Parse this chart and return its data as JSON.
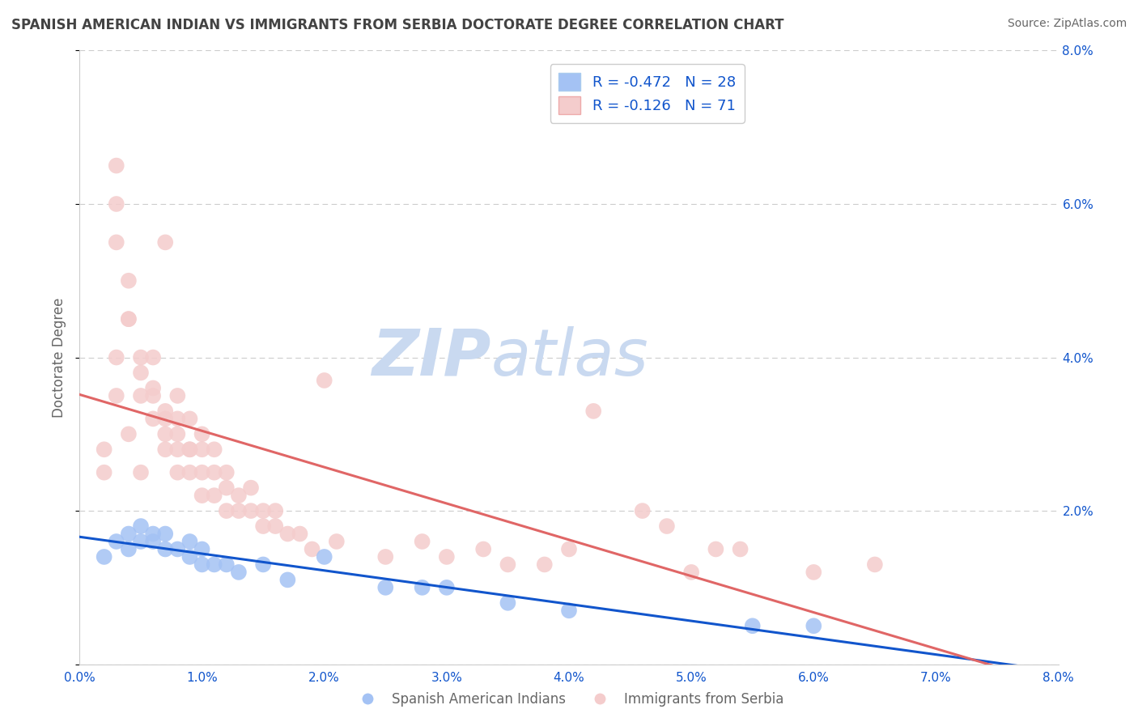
{
  "title": "SPANISH AMERICAN INDIAN VS IMMIGRANTS FROM SERBIA DOCTORATE DEGREE CORRELATION CHART",
  "source": "Source: ZipAtlas.com",
  "ylabel": "Doctorate Degree",
  "xlim": [
    0.0,
    0.08
  ],
  "ylim": [
    0.0,
    0.08
  ],
  "xticks": [
    0.0,
    0.01,
    0.02,
    0.03,
    0.04,
    0.05,
    0.06,
    0.07,
    0.08
  ],
  "xtick_labels": [
    "0.0%",
    "1.0%",
    "2.0%",
    "3.0%",
    "4.0%",
    "5.0%",
    "6.0%",
    "7.0%",
    "8.0%"
  ],
  "yticks": [
    0.0,
    0.02,
    0.04,
    0.06,
    0.08
  ],
  "ytick_labels": [
    "",
    "2.0%",
    "4.0%",
    "6.0%",
    "8.0%"
  ],
  "blue_color": "#a4c2f4",
  "pink_color": "#f4cccc",
  "blue_line_color": "#1155cc",
  "pink_line_color": "#e06666",
  "legend_blue_label": "R = -0.472   N = 28",
  "legend_pink_label": "R = -0.126   N = 71",
  "blue_scatter_x": [
    0.002,
    0.003,
    0.004,
    0.004,
    0.005,
    0.005,
    0.006,
    0.006,
    0.007,
    0.007,
    0.008,
    0.009,
    0.009,
    0.01,
    0.01,
    0.011,
    0.012,
    0.013,
    0.015,
    0.017,
    0.02,
    0.025,
    0.028,
    0.03,
    0.035,
    0.04,
    0.055,
    0.06
  ],
  "blue_scatter_y": [
    0.014,
    0.016,
    0.015,
    0.017,
    0.016,
    0.018,
    0.016,
    0.017,
    0.015,
    0.017,
    0.015,
    0.016,
    0.014,
    0.015,
    0.013,
    0.013,
    0.013,
    0.012,
    0.013,
    0.011,
    0.014,
    0.01,
    0.01,
    0.01,
    0.008,
    0.007,
    0.005,
    0.005
  ],
  "pink_scatter_x": [
    0.002,
    0.002,
    0.003,
    0.003,
    0.003,
    0.004,
    0.004,
    0.004,
    0.005,
    0.005,
    0.005,
    0.006,
    0.006,
    0.006,
    0.007,
    0.007,
    0.007,
    0.007,
    0.008,
    0.008,
    0.008,
    0.008,
    0.009,
    0.009,
    0.009,
    0.01,
    0.01,
    0.01,
    0.01,
    0.011,
    0.011,
    0.011,
    0.012,
    0.012,
    0.012,
    0.013,
    0.013,
    0.014,
    0.014,
    0.015,
    0.015,
    0.016,
    0.016,
    0.017,
    0.018,
    0.019,
    0.02,
    0.021,
    0.025,
    0.028,
    0.03,
    0.033,
    0.035,
    0.038,
    0.04,
    0.042,
    0.046,
    0.048,
    0.05,
    0.052,
    0.054,
    0.06,
    0.065,
    0.003,
    0.003,
    0.004,
    0.005,
    0.006,
    0.007,
    0.008,
    0.009
  ],
  "pink_scatter_y": [
    0.028,
    0.025,
    0.04,
    0.035,
    0.055,
    0.03,
    0.045,
    0.05,
    0.035,
    0.04,
    0.025,
    0.032,
    0.035,
    0.04,
    0.028,
    0.03,
    0.032,
    0.055,
    0.025,
    0.028,
    0.032,
    0.035,
    0.025,
    0.028,
    0.032,
    0.022,
    0.025,
    0.028,
    0.03,
    0.022,
    0.025,
    0.028,
    0.02,
    0.023,
    0.025,
    0.02,
    0.022,
    0.02,
    0.023,
    0.018,
    0.02,
    0.018,
    0.02,
    0.017,
    0.017,
    0.015,
    0.037,
    0.016,
    0.014,
    0.016,
    0.014,
    0.015,
    0.013,
    0.013,
    0.015,
    0.033,
    0.02,
    0.018,
    0.012,
    0.015,
    0.015,
    0.012,
    0.013,
    0.06,
    0.065,
    0.045,
    0.038,
    0.036,
    0.033,
    0.03,
    0.028
  ],
  "watermark_zip": "ZIP",
  "watermark_atlas": "atlas",
  "background_color": "#ffffff",
  "grid_color": "#cccccc",
  "title_color": "#434343",
  "axis_label_color": "#666666",
  "tick_color": "#1155cc",
  "legend_text_color": "#1155cc",
  "source_color": "#666666"
}
